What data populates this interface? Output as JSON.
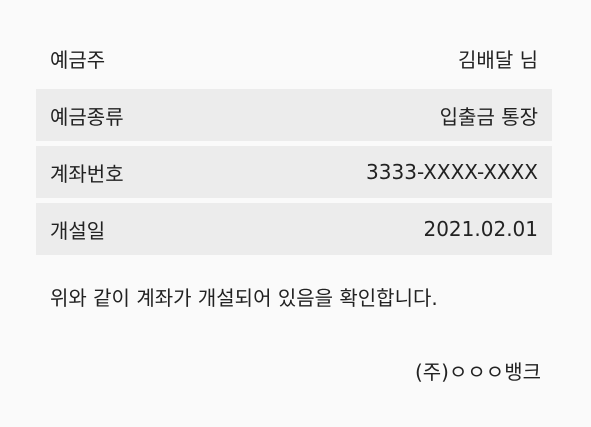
{
  "account": {
    "rows": [
      {
        "label": "예금주",
        "value": "김배달 님"
      },
      {
        "label": "예금종류",
        "value": "입출금 통장"
      },
      {
        "label": "계좌번호",
        "value": "3333-XXXX-XXXX"
      },
      {
        "label": "개설일",
        "value": "2021.02.01"
      }
    ]
  },
  "statement": "위와 같이 계좌가 개설되어 있음을 확인합니다.",
  "issuer": "(주)ㅇㅇㅇ뱅크",
  "colors": {
    "background": "#fafafa",
    "row_shade": "#ececec",
    "text": "#222222"
  }
}
